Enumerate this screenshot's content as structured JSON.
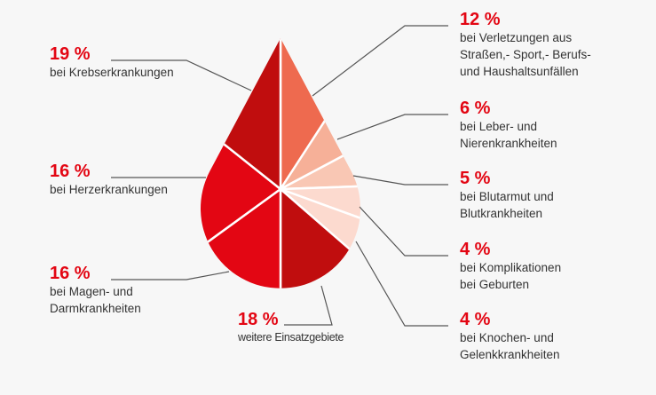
{
  "chart_data": {
    "type": "pie",
    "shape": "blood drop",
    "unit": "%",
    "background": "#f7f7f7",
    "slices": [
      {
        "value": 12,
        "label": "12 %",
        "description": "bei Verletzungen aus\nStraßen,- Sport,- Berufs-\nund Haushaltsunfällen",
        "color": "#ee6a4f"
      },
      {
        "value": 6,
        "label": "6 %",
        "description": "bei Leber- und\nNierenkrankheiten",
        "color": "#f6b098"
      },
      {
        "value": 5,
        "label": "5 %",
        "description": "bei Blutarmut und\nBlutkrankheiten",
        "color": "#f9c7b4"
      },
      {
        "value": 4,
        "label": "4 %",
        "description": "bei Komplikationen\nbei Geburten",
        "color": "#fcdacf"
      },
      {
        "value": 4,
        "label": "4 %",
        "description": "bei Knochen- und\nGelenkkrankheiten",
        "color": "#fcdacf"
      },
      {
        "value": 18,
        "label": "18 %",
        "description": "weitere Einsatzgebiete",
        "color": "#c00d0e"
      },
      {
        "value": 16,
        "label": "16 %",
        "description": "bei Magen- und\nDarmkrankheiten",
        "color": "#e30613"
      },
      {
        "value": 16,
        "label": "16 %",
        "description": "bei Herzerkrankungen",
        "color": "#e30613"
      },
      {
        "value": 19,
        "label": "19 %",
        "description": "bei Krebserkrankungen",
        "color": "#c00d0e"
      }
    ]
  }
}
